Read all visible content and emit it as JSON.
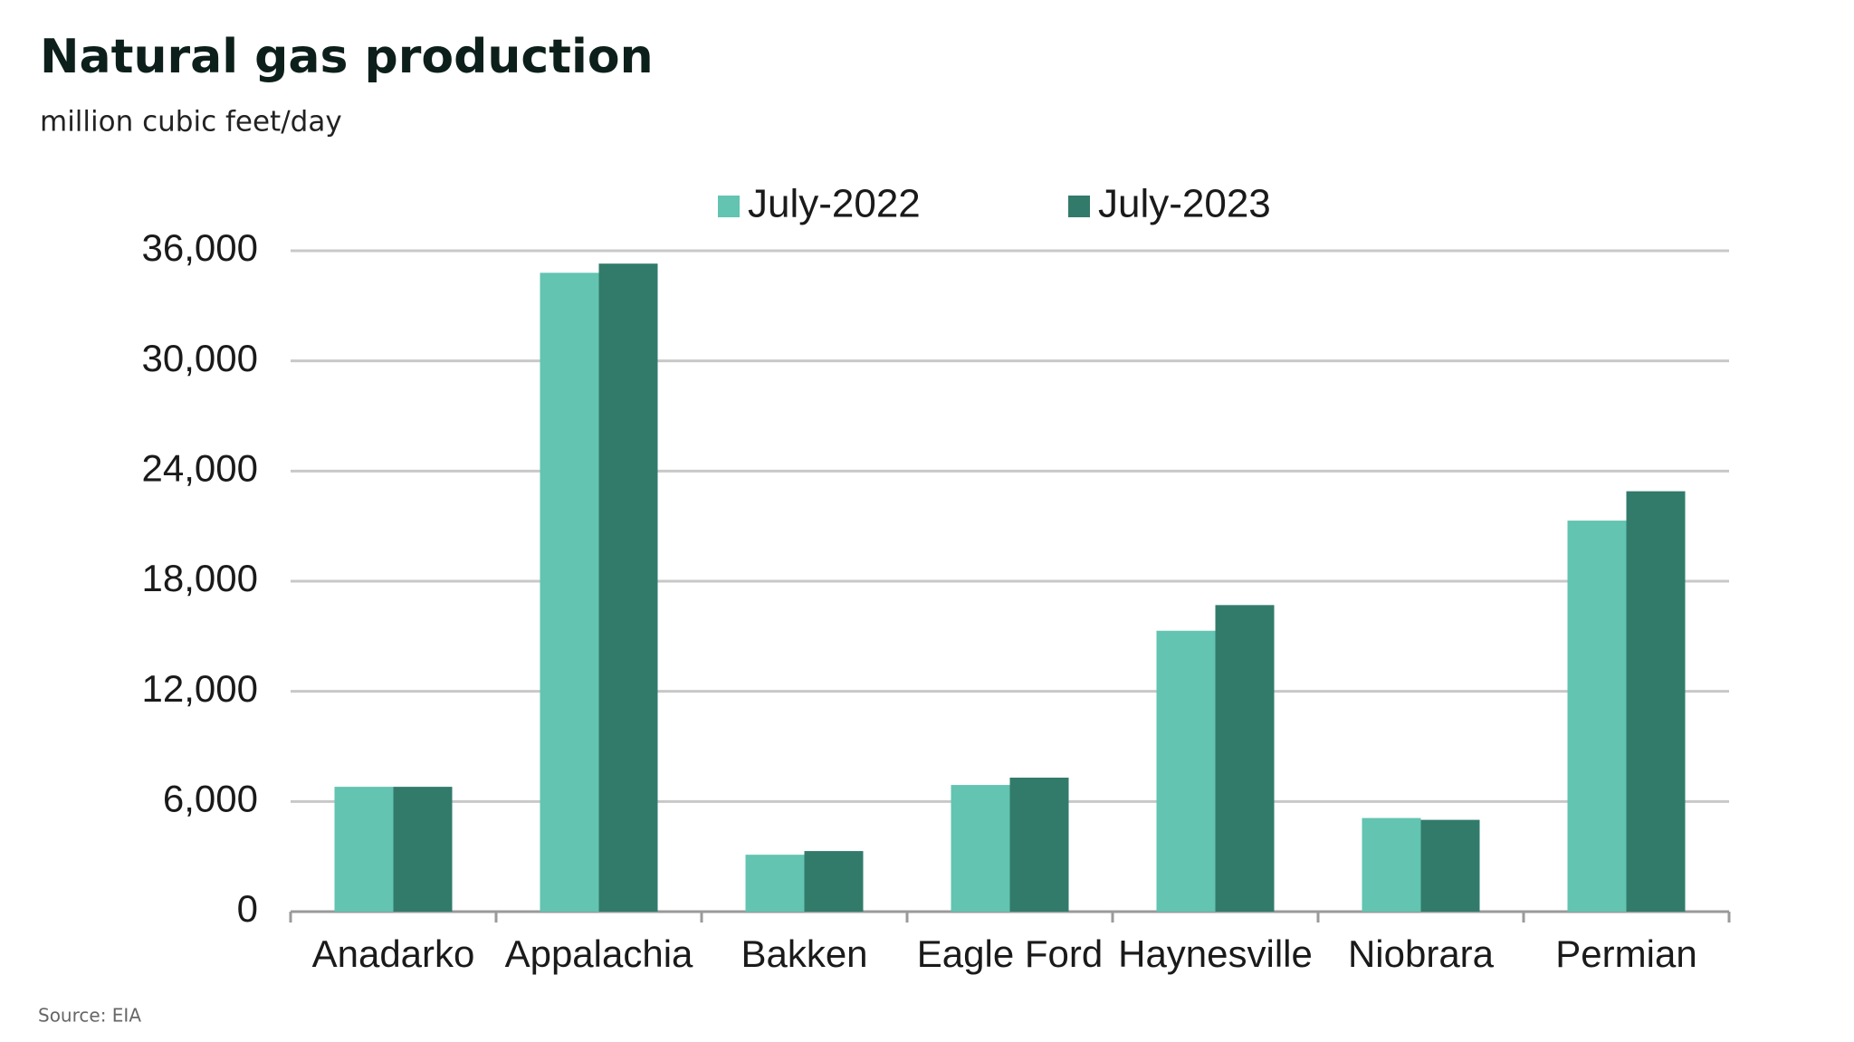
{
  "chart_data": {
    "type": "bar",
    "title": "Natural gas production",
    "subtitle": "million cubic feet/day",
    "source": "Source: EIA",
    "categories": [
      "Anadarko",
      "Appalachia",
      "Bakken",
      "Eagle Ford",
      "Haynesville",
      "Niobrara",
      "Permian"
    ],
    "series": [
      {
        "name": "July-2022",
        "color": "#62c4b1",
        "values": [
          6800,
          34800,
          3100,
          6900,
          15300,
          5100,
          21300
        ]
      },
      {
        "name": "July-2023",
        "color": "#327b6b",
        "values": [
          6800,
          35300,
          3300,
          7300,
          16700,
          5000,
          22900
        ]
      }
    ],
    "ylim": [
      0,
      36000
    ],
    "yticks": [
      0,
      {
        "value": 6000,
        "label": "6,000"
      },
      {
        "value": 12000,
        "label": "12,000"
      },
      {
        "value": 18000,
        "label": "18,000"
      },
      {
        "value": 24000,
        "label": "24,000"
      },
      {
        "value": 30000,
        "label": "30,000"
      },
      {
        "value": 36000,
        "label": "36,000"
      }
    ],
    "grid": true,
    "legend": "top"
  }
}
